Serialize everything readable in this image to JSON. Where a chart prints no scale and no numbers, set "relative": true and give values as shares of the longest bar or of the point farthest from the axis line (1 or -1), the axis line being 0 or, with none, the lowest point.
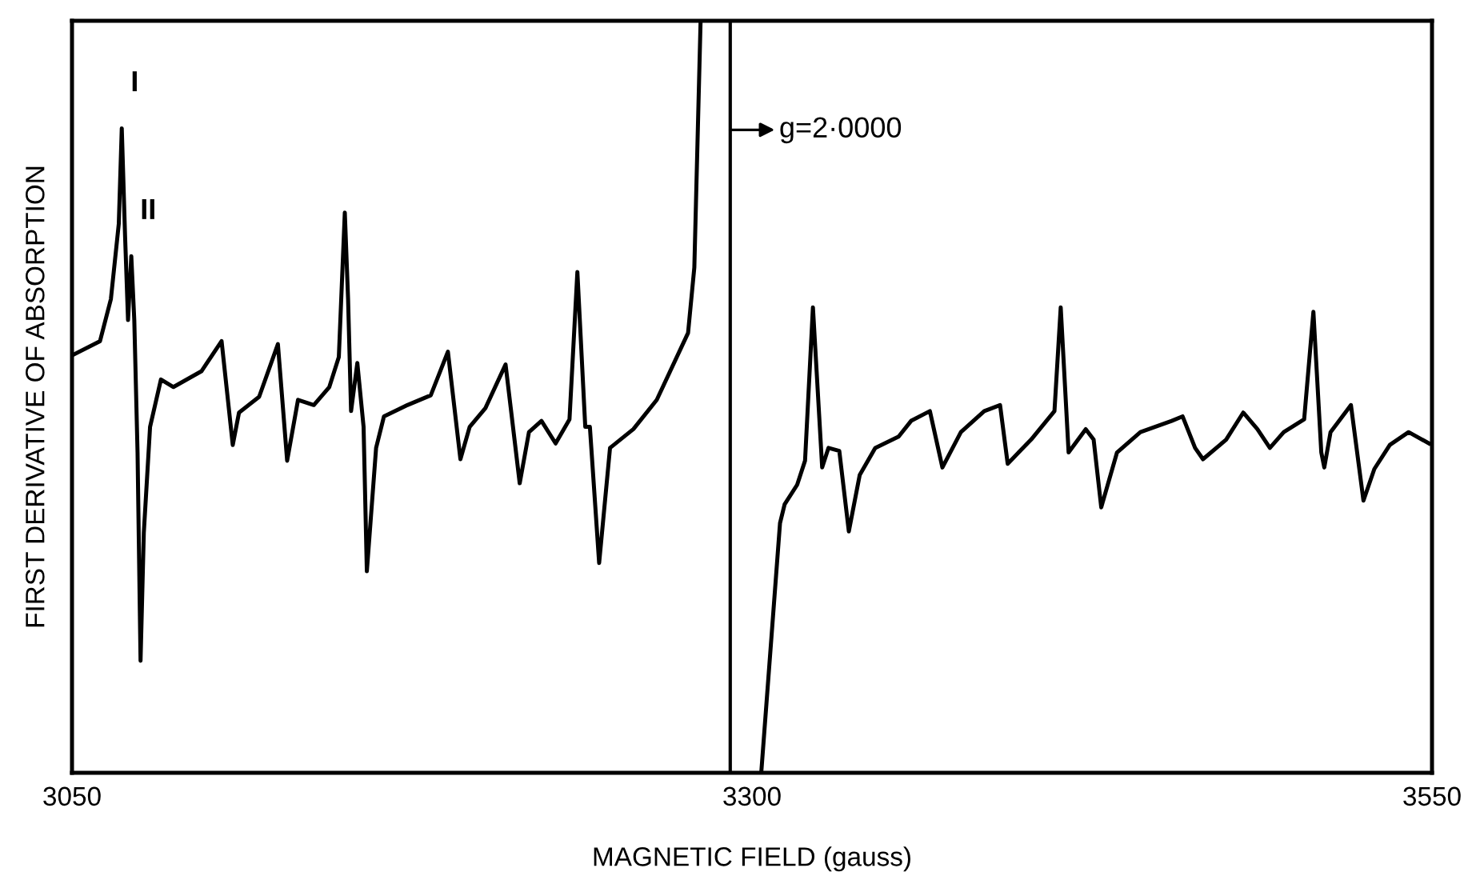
{
  "chart_data": {
    "type": "line",
    "relative": true,
    "tick_labels": "x",
    "grid": false,
    "legend": false,
    "marker": "none",
    "line_style": "solid",
    "xlabel": "MAGNETIC FIELD (gauss)",
    "ylabel": "FIRST DERIVATIVE OF ABSORPTION",
    "xlim": [
      3050,
      3550
    ],
    "xticks": [
      3050,
      3300,
      3550
    ],
    "ref_lines": [
      {
        "axis": "x",
        "value": 3292,
        "color": "#000000"
      }
    ],
    "annotations": [
      {
        "text": "I",
        "x": 3068.3,
        "y": 0.857
      },
      {
        "text": "II",
        "x": 3071.8,
        "y": 0.687
      },
      {
        "text": "g=2·0000",
        "x": 3292,
        "y": 0.855
      }
    ],
    "series": [
      {
        "color": "#000000",
        "x": [
          3050,
          3060.3,
          3064.3,
          3067.2,
          3068.3,
          3069.5,
          3070.6,
          3071.8,
          3072.9,
          3074.1,
          3075.2,
          3076.4,
          3078.7,
          3082.7,
          3087.3,
          3097.6,
          3105.0,
          3109.1,
          3111.4,
          3118.8,
          3125.7,
          3129.1,
          3133.1,
          3138.9,
          3144.6,
          3148.1,
          3150.3,
          3151.5,
          3152.6,
          3154.9,
          3157.2,
          3158.4,
          3161.8,
          3164.7,
          3173.3,
          3181.9,
          3188.2,
          3192.8,
          3196.2,
          3202.0,
          3209.4,
          3214.6,
          3218.0,
          3222.6,
          3227.8,
          3232.9,
          3235.8,
          3238.7,
          3240.4,
          3243.8,
          3247.8,
          3256.4,
          3265.0,
          3276.5,
          3278.8,
          3281.1,
          3290,
          3303.4,
          3310.3,
          3312.0,
          3316.6,
          3319.5,
          3322.4,
          3325.8,
          3328.1,
          3332.1,
          3335.6,
          3339.6,
          3345.3,
          3353.9,
          3358.5,
          3365.4,
          3370.0,
          3376.8,
          3385.4,
          3391.2,
          3394.0,
          3402.6,
          3411.2,
          3413.5,
          3416.4,
          3422.7,
          3425.6,
          3428.4,
          3434.2,
          3442.8,
          3454.3,
          3458.3,
          3462.9,
          3465.8,
          3474.3,
          3480.6,
          3485.8,
          3490.4,
          3495.5,
          3503.0,
          3506.4,
          3509.3,
          3510.4,
          3512.7,
          3520.2,
          3524.8,
          3528.8,
          3534.5,
          3541.4,
          3548.9
        ],
        "values": [
          0.555,
          0.574,
          0.63,
          0.73,
          0.857,
          0.715,
          0.602,
          0.687,
          0.602,
          0.426,
          0.149,
          0.319,
          0.46,
          0.523,
          0.513,
          0.534,
          0.574,
          0.436,
          0.479,
          0.5,
          0.57,
          0.415,
          0.496,
          0.489,
          0.513,
          0.553,
          0.745,
          0.63,
          0.481,
          0.545,
          0.46,
          0.268,
          0.432,
          0.474,
          0.489,
          0.502,
          0.56,
          0.417,
          0.46,
          0.485,
          0.543,
          0.385,
          0.453,
          0.468,
          0.438,
          0.47,
          0.666,
          0.46,
          0.46,
          0.279,
          0.432,
          0.457,
          0.496,
          0.585,
          0.672,
          1.0,
          null,
          0,
          0.332,
          0.357,
          0.383,
          0.415,
          0.619,
          0.406,
          0.432,
          0.428,
          0.321,
          0.396,
          0.432,
          0.447,
          0.468,
          0.481,
          0.406,
          0.453,
          0.481,
          0.489,
          0.411,
          0.443,
          0.481,
          0.619,
          0.426,
          0.457,
          0.443,
          0.353,
          0.426,
          0.453,
          0.468,
          0.474,
          0.432,
          0.417,
          0.443,
          0.479,
          0.457,
          0.432,
          0.453,
          0.47,
          0.613,
          0.426,
          0.406,
          0.453,
          0.489,
          0.362,
          0.404,
          0.436,
          0.453,
          0.438
        ]
      }
    ]
  }
}
